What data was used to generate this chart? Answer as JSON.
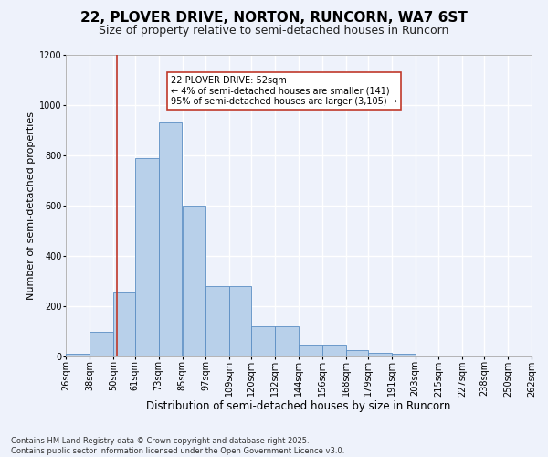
{
  "title_line1": "22, PLOVER DRIVE, NORTON, RUNCORN, WA7 6ST",
  "title_line2": "Size of property relative to semi-detached houses in Runcorn",
  "xlabel": "Distribution of semi-detached houses by size in Runcorn",
  "ylabel": "Number of semi-detached properties",
  "footer_line1": "Contains HM Land Registry data © Crown copyright and database right 2025.",
  "footer_line2": "Contains public sector information licensed under the Open Government Licence v3.0.",
  "annotation_title": "22 PLOVER DRIVE: 52sqm",
  "annotation_line1": "← 4% of semi-detached houses are smaller (141)",
  "annotation_line2": "95% of semi-detached houses are larger (3,105) →",
  "property_size": 52,
  "bin_edges": [
    26,
    38,
    50,
    61,
    73,
    85,
    97,
    109,
    120,
    132,
    144,
    156,
    168,
    179,
    191,
    203,
    215,
    227,
    238,
    250,
    262
  ],
  "bin_labels": [
    "26sqm",
    "38sqm",
    "50sqm",
    "61sqm",
    "73sqm",
    "85sqm",
    "97sqm",
    "109sqm",
    "120sqm",
    "132sqm",
    "144sqm",
    "156sqm",
    "168sqm",
    "179sqm",
    "191sqm",
    "203sqm",
    "215sqm",
    "227sqm",
    "238sqm",
    "250sqm",
    "262sqm"
  ],
  "counts": [
    10,
    100,
    255,
    790,
    930,
    600,
    280,
    280,
    120,
    120,
    45,
    45,
    25,
    15,
    10,
    5,
    3,
    2,
    1,
    1,
    0
  ],
  "bar_color": "#b8d0ea",
  "bar_edge_color": "#5b8ec4",
  "line_color": "#c0392b",
  "background_color": "#eef2fb",
  "grid_color": "#ffffff",
  "ylim": [
    0,
    1200
  ],
  "yticks": [
    0,
    200,
    400,
    600,
    800,
    1000,
    1200
  ],
  "title1_fontsize": 11,
  "title2_fontsize": 9,
  "xlabel_fontsize": 8.5,
  "ylabel_fontsize": 8,
  "tick_fontsize": 7,
  "annotation_fontsize": 7,
  "footer_fontsize": 6,
  "annotation_box_color": "#ffffff",
  "annotation_box_edge_color": "#c0392b",
  "figwidth": 6.0,
  "figheight": 5.0,
  "dpi": 100
}
